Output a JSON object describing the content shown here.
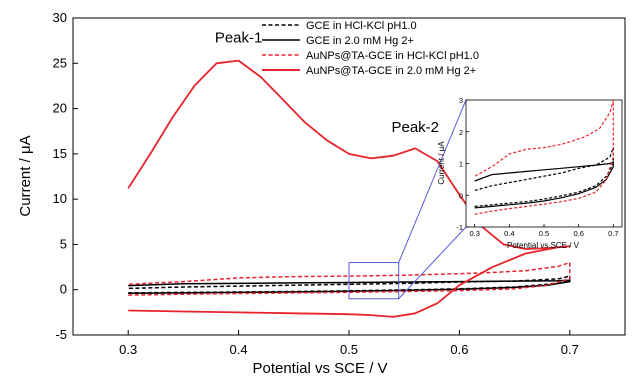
{
  "chart_data": {
    "type": "line",
    "main": {
      "xlabel": "Potential vs SCE / V",
      "ylabel": "Current / μA",
      "xlim": [
        0.25,
        0.75
      ],
      "ylim": [
        -5,
        30
      ],
      "xticks": [
        "0.3",
        "0.4",
        "0.5",
        "0.6",
        "0.7"
      ],
      "yticks": [
        "-5",
        "0",
        "5",
        "10",
        "15",
        "20",
        "25",
        "30"
      ],
      "annotations": [
        {
          "text": "Peak-1",
          "x": 0.4,
          "y": 27.3
        },
        {
          "text": "Peak-2",
          "x": 0.56,
          "y": 17.4
        }
      ],
      "zoom_box": {
        "x": [
          0.5,
          0.545
        ],
        "y": [
          -1,
          3
        ]
      },
      "series": [
        {
          "name": "GCE in HCl-KCl pH1.0",
          "color": "#000000",
          "dash": "dashed",
          "forward": {
            "x": [
              0.3,
              0.35,
              0.4,
              0.45,
              0.5,
              0.55,
              0.6,
              0.65,
              0.68,
              0.7
            ],
            "y": [
              -0.35,
              -0.3,
              -0.25,
              -0.2,
              -0.12,
              -0.02,
              0.1,
              0.3,
              0.6,
              1.0
            ]
          },
          "reverse": {
            "x": [
              0.7,
              0.69,
              0.65,
              0.6,
              0.55,
              0.5,
              0.45,
              0.4,
              0.35,
              0.3
            ],
            "y": [
              1.5,
              1.2,
              0.95,
              0.85,
              0.7,
              0.6,
              0.5,
              0.4,
              0.3,
              0.15
            ]
          }
        },
        {
          "name": "GCE in 2.0 mM Hg 2+",
          "color": "#000000",
          "dash": "solid",
          "forward": {
            "x": [
              0.3,
              0.35,
              0.4,
              0.45,
              0.5,
              0.55,
              0.6,
              0.65,
              0.68,
              0.7
            ],
            "y": [
              -0.4,
              -0.35,
              -0.3,
              -0.25,
              -0.18,
              -0.08,
              0.05,
              0.25,
              0.5,
              0.9
            ]
          },
          "reverse": {
            "x": [
              0.7,
              0.69,
              0.65,
              0.6,
              0.55,
              0.5,
              0.45,
              0.4,
              0.35,
              0.3
            ],
            "y": [
              1.05,
              1.0,
              0.95,
              0.9,
              0.85,
              0.8,
              0.75,
              0.7,
              0.65,
              0.45
            ]
          }
        },
        {
          "name": "AuNPs@TA-GCE in HCl-KCl pH1.0",
          "color": "#e8232b",
          "dash": "dashed",
          "forward": {
            "x": [
              0.3,
              0.35,
              0.4,
              0.45,
              0.5,
              0.55,
              0.6,
              0.65,
              0.68,
              0.7
            ],
            "y": [
              -0.6,
              -0.5,
              -0.42,
              -0.35,
              -0.28,
              -0.2,
              -0.1,
              0.1,
              0.5,
              1.2
            ]
          },
          "reverse": {
            "x": [
              0.7,
              0.69,
              0.66,
              0.62,
              0.58,
              0.55,
              0.5,
              0.45,
              0.4,
              0.35,
              0.3
            ],
            "y": [
              3.0,
              2.6,
              2.1,
              1.85,
              1.7,
              1.6,
              1.5,
              1.45,
              1.3,
              0.9,
              0.6
            ]
          }
        },
        {
          "name": "AuNPs@TA-GCE in 2.0 mM Hg 2+",
          "color": "#e8232b",
          "dash": "solid",
          "forward": {
            "x": [
              0.3,
              0.35,
              0.4,
              0.45,
              0.5,
              0.52,
              0.54,
              0.56,
              0.58,
              0.6,
              0.63,
              0.66,
              0.69,
              0.7
            ],
            "y": [
              -2.3,
              -2.4,
              -2.5,
              -2.6,
              -2.7,
              -2.8,
              -3.0,
              -2.6,
              -1.5,
              0.5,
              2.5,
              4.0,
              4.7,
              4.8
            ]
          },
          "reverse": {
            "x": [
              0.7,
              0.68,
              0.66,
              0.64,
              0.62,
              0.6,
              0.58,
              0.56,
              0.54,
              0.52,
              0.5,
              0.48,
              0.46,
              0.44,
              0.42,
              0.4,
              0.38,
              0.36,
              0.34,
              0.32,
              0.3
            ],
            "y": [
              4.8,
              4.6,
              4.5,
              5.0,
              7.0,
              10.5,
              14.2,
              15.6,
              14.8,
              14.5,
              15.0,
              16.5,
              18.5,
              21.0,
              23.5,
              25.3,
              25.0,
              22.5,
              19.0,
              15.0,
              11.2
            ]
          }
        }
      ]
    },
    "inset": {
      "xlabel": "Potential vs SCE / V",
      "ylabel": "Current / μA",
      "xlim": [
        0.275,
        0.725
      ],
      "ylim": [
        -1,
        3
      ],
      "xticks": [
        "0.3",
        "0.4",
        "0.5",
        "0.6",
        "0.7"
      ],
      "yticks": [
        "-1",
        "0",
        "1",
        "2",
        "3"
      ]
    }
  }
}
